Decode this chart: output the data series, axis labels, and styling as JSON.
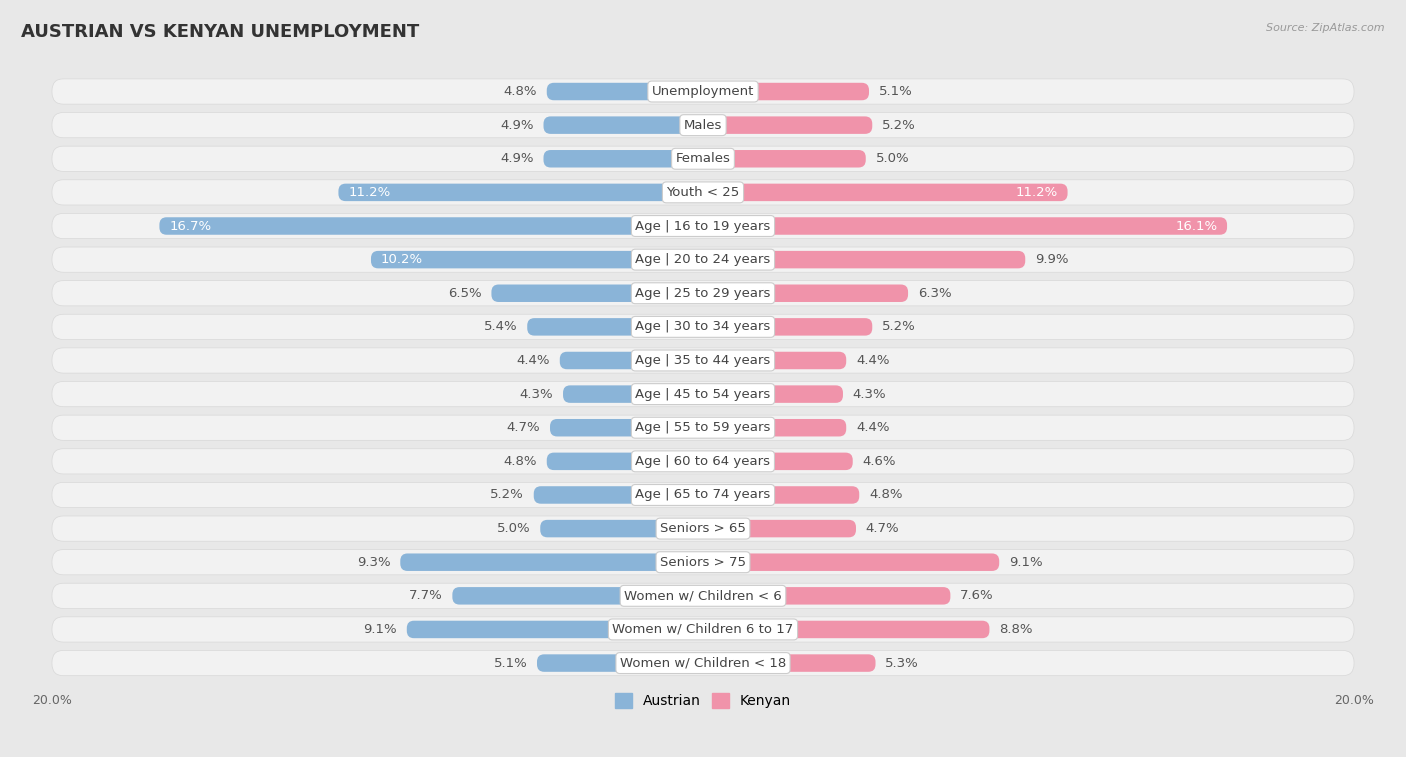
{
  "title": "AUSTRIAN VS KENYAN UNEMPLOYMENT",
  "source": "Source: ZipAtlas.com",
  "categories": [
    "Unemployment",
    "Males",
    "Females",
    "Youth < 25",
    "Age | 16 to 19 years",
    "Age | 20 to 24 years",
    "Age | 25 to 29 years",
    "Age | 30 to 34 years",
    "Age | 35 to 44 years",
    "Age | 45 to 54 years",
    "Age | 55 to 59 years",
    "Age | 60 to 64 years",
    "Age | 65 to 74 years",
    "Seniors > 65",
    "Seniors > 75",
    "Women w/ Children < 6",
    "Women w/ Children 6 to 17",
    "Women w/ Children < 18"
  ],
  "austrian": [
    4.8,
    4.9,
    4.9,
    11.2,
    16.7,
    10.2,
    6.5,
    5.4,
    4.4,
    4.3,
    4.7,
    4.8,
    5.2,
    5.0,
    9.3,
    7.7,
    9.1,
    5.1
  ],
  "kenyan": [
    5.1,
    5.2,
    5.0,
    11.2,
    16.1,
    9.9,
    6.3,
    5.2,
    4.4,
    4.3,
    4.4,
    4.6,
    4.8,
    4.7,
    9.1,
    7.6,
    8.8,
    5.3
  ],
  "austrian_color": "#8ab4d8",
  "kenyan_color": "#f093aa",
  "bg_color": "#e8e8e8",
  "row_bg_color": "#f2f2f2",
  "row_border_color": "#d8d8d8",
  "axis_max": 20.0,
  "label_fontsize": 9.5,
  "value_fontsize": 9.5,
  "title_fontsize": 13,
  "legend_austrian": "Austrian",
  "legend_kenyan": "Kenyan",
  "center_label_bg": "#ffffff",
  "center_label_color": "#444444",
  "value_color": "#555555"
}
